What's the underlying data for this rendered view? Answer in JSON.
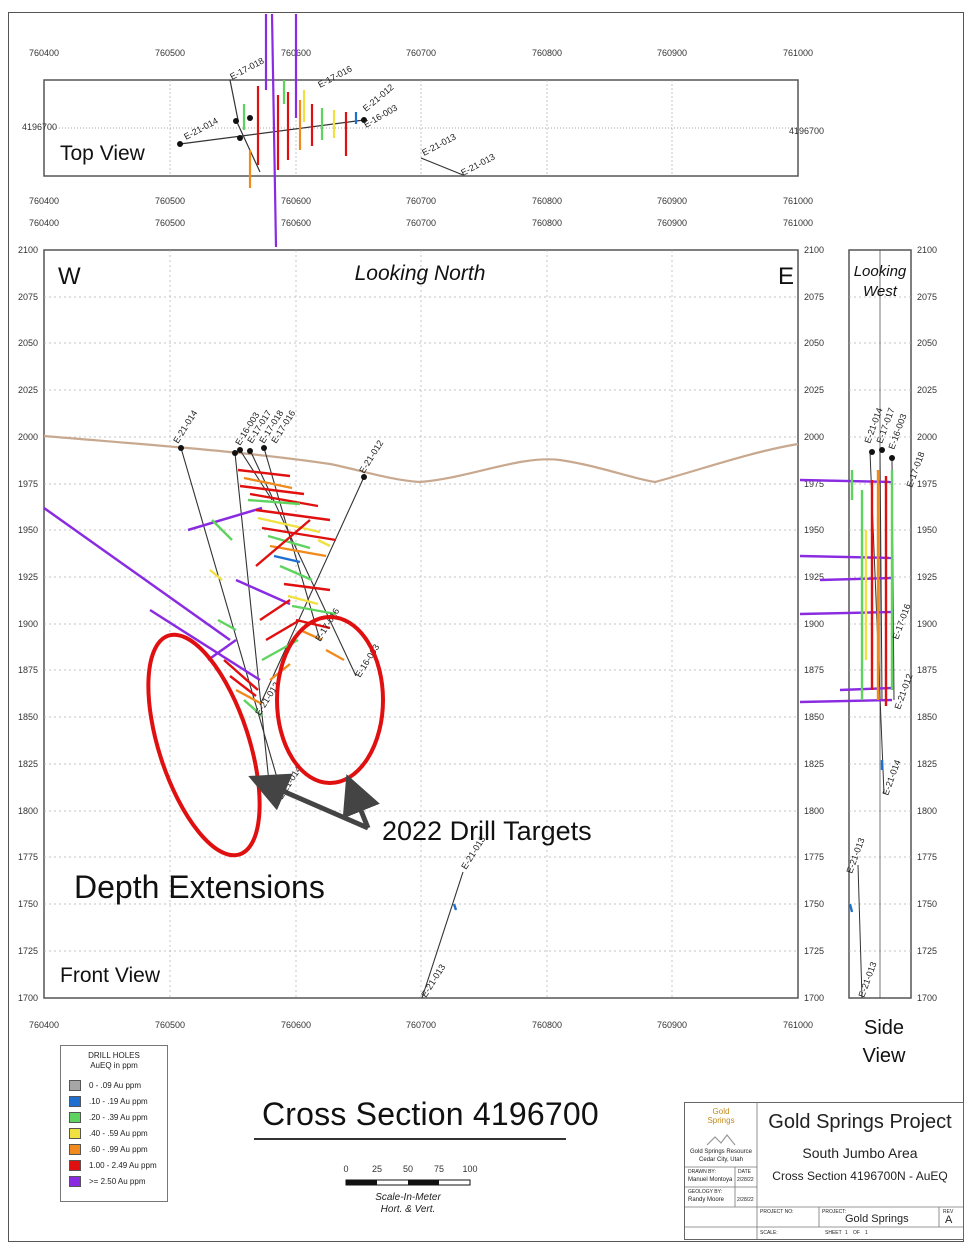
{
  "top_view": {
    "label": "Top View",
    "x_ticks": [
      "760400",
      "760500",
      "760600",
      "760700",
      "760800",
      "760900",
      "761000"
    ],
    "y_label_left": "4196700",
    "y_label_right": "4196700"
  },
  "front_view": {
    "label": "Front View",
    "west": "W",
    "east": "E",
    "looking": "Looking North",
    "x_ticks": [
      "760400",
      "760500",
      "760600",
      "760700",
      "760800",
      "760900",
      "761000"
    ],
    "y_ticks": [
      "2100",
      "2075",
      "2050",
      "2025",
      "2000",
      "1975",
      "1950",
      "1925",
      "1900",
      "1875",
      "1850",
      "1825",
      "1800",
      "1775",
      "1750",
      "1725",
      "1700"
    ],
    "annotation_targets": "2022 Drill Targets",
    "annotation_depth": "Depth Extensions"
  },
  "side_view": {
    "looking_1": "Looking",
    "looking_2": "West",
    "label_1": "Side",
    "label_2": "View"
  },
  "drill_holes": {
    "e21_014": "E-21-014",
    "e16_003": "E-16-003",
    "e17_017": "E-17-017",
    "e17_018": "E-17-018",
    "e17_016": "E-17-016",
    "e21_012": "E-21-012",
    "e21_013": "E-21-013"
  },
  "legend": {
    "title_1": "DRILL HOLES",
    "title_2": "AuEQ in ppm",
    "items": [
      {
        "label": "0 - .09 Au ppm",
        "color": "#a6a6a6"
      },
      {
        "label": ".10 - .19 Au ppm",
        "color": "#1f6fd1"
      },
      {
        "label": ".20 - .39 Au ppm",
        "color": "#5fd35f"
      },
      {
        "label": ".40 - .59 Au ppm",
        "color": "#f0e040"
      },
      {
        "label": ".60 - .99 Au ppm",
        "color": "#f08a1c"
      },
      {
        "label": "1.00 - 2.49 Au ppm",
        "color": "#e01010"
      },
      {
        "label": ">= 2.50 Au ppm",
        "color": "#8a2be2"
      }
    ]
  },
  "title": "Cross Section 4196700",
  "scale": {
    "ticks": [
      "0",
      "25",
      "50",
      "75",
      "100"
    ],
    "label_1": "Scale-In-Meter",
    "label_2": "Hort. & Vert."
  },
  "title_block": {
    "logo_1": "Gold",
    "logo_2": "Springs",
    "company_1": "Gold Springs Resource",
    "company_2": "Cedar City, Utah",
    "drawn_by_label": "DRAWN BY:",
    "drawn_by": "Manuel Montoya",
    "date_label": "DATE",
    "date_1": "2/28/22",
    "geology_label": "GEOLOGY BY:",
    "geology_by": "Randy Moore",
    "date_2": "2/28/22",
    "project_title": "Gold Springs Project",
    "area": "South Jumbo Area",
    "section": "Cross Section 4196700N - AuEQ",
    "project_no_label": "PROJECT NO:",
    "project_label": "PROJECT:",
    "project": "Gold Springs",
    "rev_label": "REV",
    "rev": "A",
    "scale_label": "SCALE:",
    "sheet_label": "SHEET",
    "sheet_num": "1",
    "of_label": "OF",
    "sheet_total": "1"
  },
  "colors": {
    "topo": "#c8a98f",
    "grid": "#b0b0b0",
    "target": "#e01010",
    "arrow": "#444444"
  }
}
